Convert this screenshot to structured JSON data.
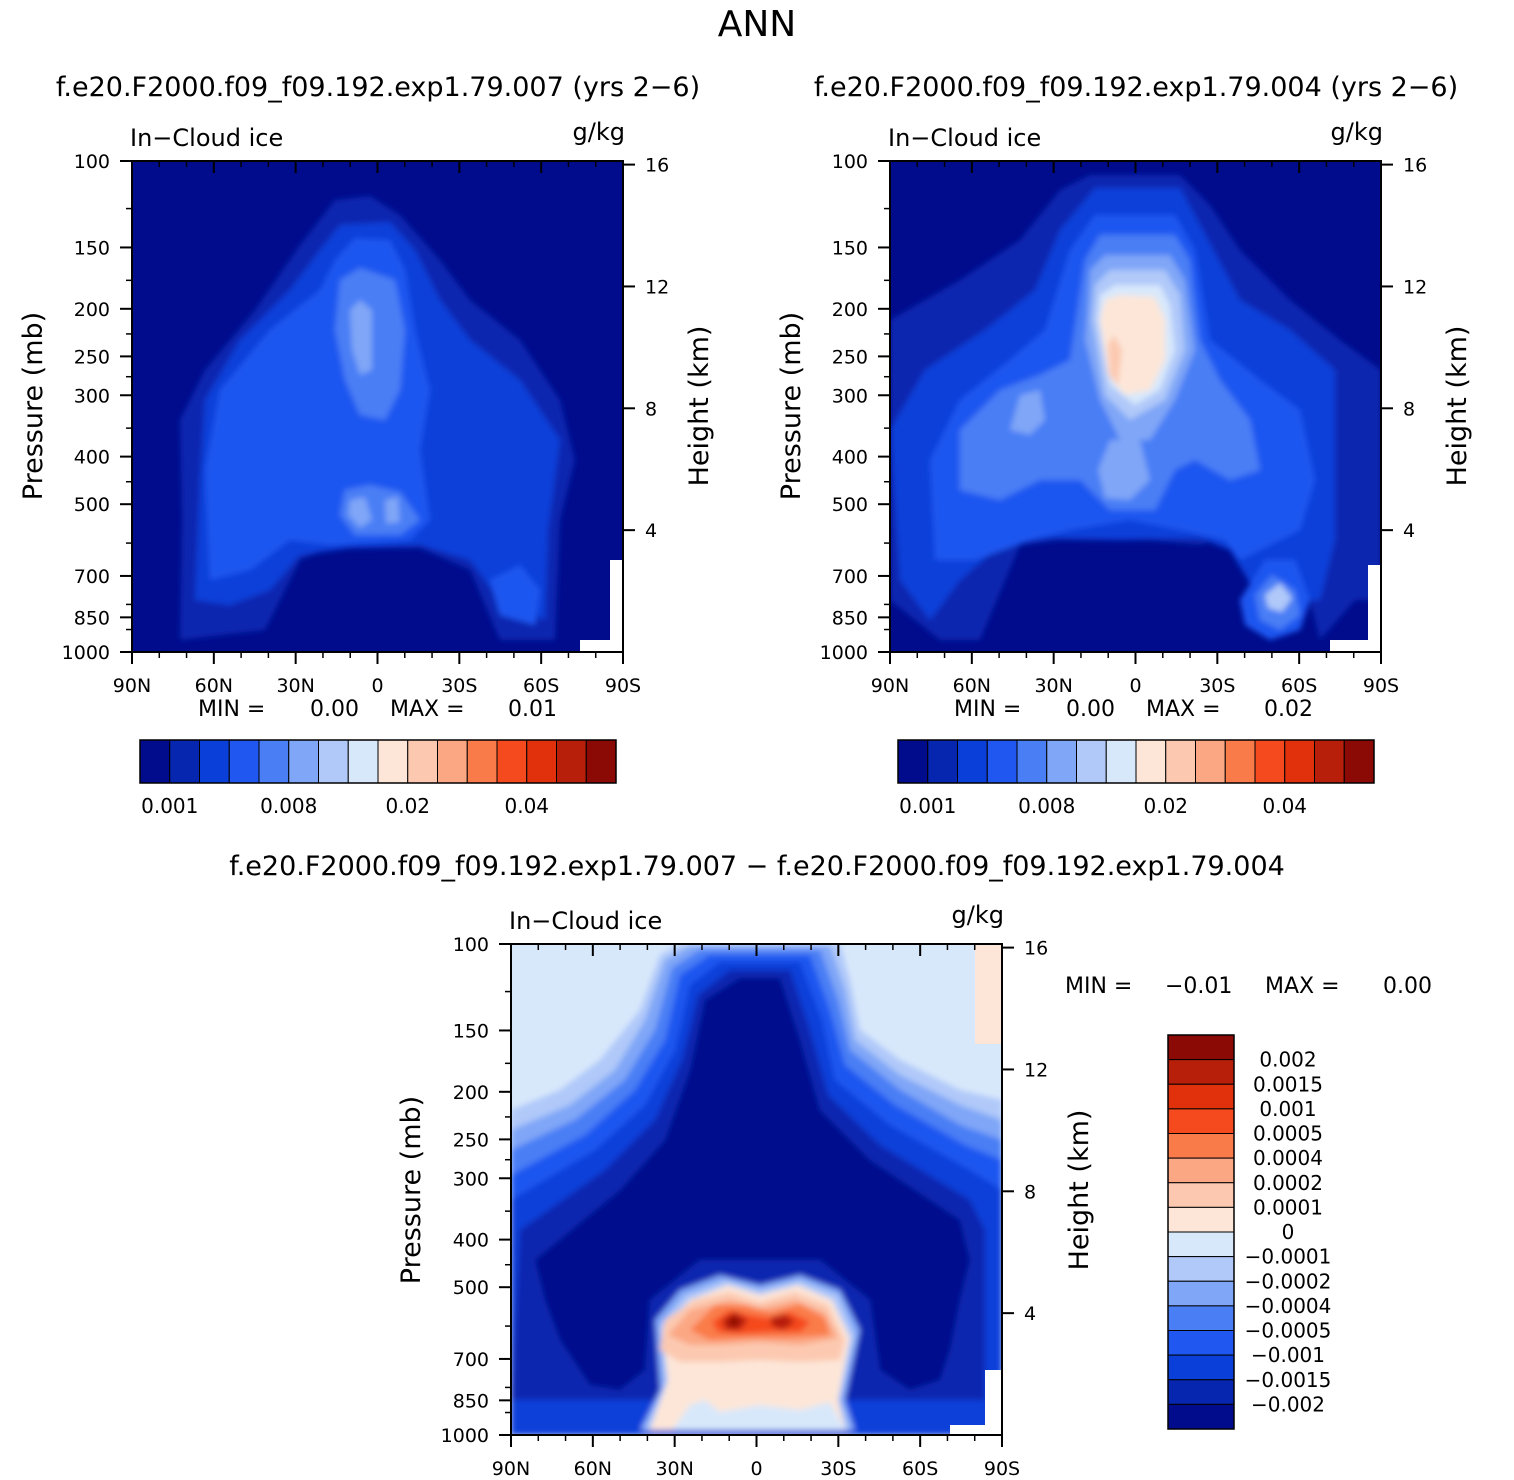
{
  "figure": {
    "title": "ANN"
  },
  "colors": {
    "blue_ramp": [
      "#000c8c",
      "#0726b0",
      "#0b3fd9",
      "#1f57f0",
      "#4a7ef5",
      "#7fa6f7",
      "#b0c9f9",
      "#d8e8fb"
    ],
    "red_ramp": [
      "#fde6d8",
      "#fcc9b0",
      "#fba784",
      "#fa7b4a",
      "#f54a1e",
      "#e0300c",
      "#b81f0a",
      "#8b0a05"
    ]
  },
  "chart_data": [
    {
      "id": "p1",
      "type": "contour",
      "title": "f.e20.F2000.f09_f09.192.exp1.79.007 (yrs 2−6)",
      "left_label": "In−Cloud ice",
      "right_label": "g/kg",
      "ylabel": "Pressure (mb)",
      "y2label": "Height (km)",
      "x_ticks": [
        "90N",
        "60N",
        "30N",
        "0",
        "30S",
        "60S",
        "90S"
      ],
      "y_ticks": [
        "100",
        "150",
        "200",
        "250",
        "300",
        "400",
        "500",
        "700",
        "850",
        "1000"
      ],
      "y_tick_values": [
        100,
        150,
        200,
        250,
        300,
        400,
        500,
        700,
        850,
        1000
      ],
      "y2_ticks": [
        "4",
        "8",
        "12",
        "16"
      ],
      "y2_tick_values": [
        4,
        8,
        12,
        16
      ],
      "xlim": [
        90,
        -90
      ],
      "ylim": [
        1000,
        100
      ],
      "min_label": "MIN =",
      "min_value": "0.00",
      "max_label": "MAX =",
      "max_value": "0.01",
      "colorbar_labels": [
        "0.001",
        "0.008",
        "0.02",
        "0.04"
      ],
      "colorbar_levels": 16
    },
    {
      "id": "p2",
      "type": "contour",
      "title": "f.e20.F2000.f09_f09.192.exp1.79.004 (yrs 2−6)",
      "left_label": "In−Cloud ice",
      "right_label": "g/kg",
      "ylabel": "Pressure (mb)",
      "y2label": "Height (km)",
      "x_ticks": [
        "90N",
        "60N",
        "30N",
        "0",
        "30S",
        "60S",
        "90S"
      ],
      "y_ticks": [
        "100",
        "150",
        "200",
        "250",
        "300",
        "400",
        "500",
        "700",
        "850",
        "1000"
      ],
      "y_tick_values": [
        100,
        150,
        200,
        250,
        300,
        400,
        500,
        700,
        850,
        1000
      ],
      "y2_ticks": [
        "4",
        "8",
        "12",
        "16"
      ],
      "y2_tick_values": [
        4,
        8,
        12,
        16
      ],
      "xlim": [
        90,
        -90
      ],
      "ylim": [
        1000,
        100
      ],
      "min_label": "MIN =",
      "min_value": "0.00",
      "max_label": "MAX =",
      "max_value": "0.02",
      "colorbar_labels": [
        "0.001",
        "0.008",
        "0.02",
        "0.04"
      ],
      "colorbar_levels": 16
    },
    {
      "id": "p3",
      "type": "contour",
      "title": "f.e20.F2000.f09_f09.192.exp1.79.007 − f.e20.F2000.f09_f09.192.exp1.79.004",
      "left_label": "In−Cloud ice",
      "right_label": "g/kg",
      "ylabel": "Pressure (mb)",
      "y2label": "Height (km)",
      "x_ticks": [
        "90N",
        "60N",
        "30N",
        "0",
        "30S",
        "60S",
        "90S"
      ],
      "y_ticks": [
        "100",
        "150",
        "200",
        "250",
        "300",
        "400",
        "500",
        "700",
        "850",
        "1000"
      ],
      "y_tick_values": [
        100,
        150,
        200,
        250,
        300,
        400,
        500,
        700,
        850,
        1000
      ],
      "y2_ticks": [
        "4",
        "8",
        "12",
        "16"
      ],
      "y2_tick_values": [
        4,
        8,
        12,
        16
      ],
      "xlim": [
        90,
        -90
      ],
      "ylim": [
        1000,
        100
      ],
      "min_label": "MIN =",
      "min_value": "−0.01",
      "max_label": "MAX =",
      "max_value": "0.00",
      "colorbar_labels": [
        "0.002",
        "0.0015",
        "0.001",
        "0.0005",
        "0.0004",
        "0.0002",
        "0.0001",
        "0",
        "−0.0001",
        "−0.0002",
        "−0.0004",
        "−0.0005",
        "−0.001",
        "−0.0015",
        "−0.002"
      ],
      "colorbar_levels": 16
    }
  ]
}
